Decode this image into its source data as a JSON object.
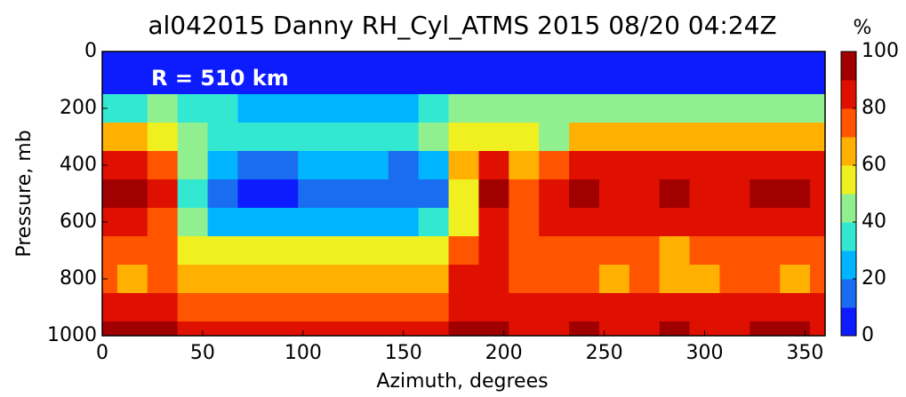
{
  "chart_data": {
    "type": "contour",
    "title": "al042015 Danny RH_Cyl_ATMS  2015 08/20 04:24Z",
    "annotation": "R = 510 km",
    "x_label": "Azimuth, degrees",
    "y_label": "Pressure, mb",
    "colorbar_label": "%",
    "x": [
      0,
      15,
      30,
      45,
      60,
      75,
      90,
      105,
      120,
      135,
      150,
      165,
      180,
      195,
      210,
      225,
      240,
      255,
      270,
      285,
      300,
      315,
      330,
      345,
      360
    ],
    "y": [
      0,
      100,
      200,
      300,
      400,
      500,
      600,
      700,
      800,
      900,
      1000
    ],
    "z": [
      [
        5,
        5,
        5,
        5,
        5,
        5,
        5,
        5,
        5,
        5,
        5,
        5,
        5,
        5,
        5,
        5,
        5,
        5,
        5,
        5,
        5,
        5,
        5,
        5,
        5
      ],
      [
        5,
        5,
        5,
        5,
        5,
        5,
        5,
        5,
        5,
        5,
        5,
        5,
        5,
        5,
        5,
        5,
        5,
        5,
        5,
        5,
        5,
        5,
        5,
        5,
        5
      ],
      [
        35,
        35,
        40,
        35,
        30,
        25,
        25,
        25,
        25,
        25,
        25,
        30,
        40,
        45,
        40,
        40,
        40,
        40,
        40,
        40,
        40,
        40,
        40,
        45,
        40
      ],
      [
        62,
        60,
        55,
        40,
        35,
        35,
        35,
        35,
        35,
        35,
        35,
        40,
        50,
        55,
        50,
        45,
        65,
        65,
        60,
        65,
        65,
        60,
        65,
        65,
        60
      ],
      [
        85,
        85,
        75,
        40,
        22,
        18,
        18,
        20,
        20,
        20,
        18,
        22,
        60,
        80,
        60,
        75,
        85,
        85,
        80,
        85,
        85,
        80,
        85,
        85,
        82
      ],
      [
        90,
        90,
        80,
        35,
        12,
        8,
        8,
        12,
        15,
        15,
        15,
        15,
        50,
        92,
        70,
        85,
        92,
        88,
        85,
        90,
        88,
        85,
        92,
        92,
        88
      ],
      [
        85,
        85,
        75,
        40,
        28,
        28,
        28,
        28,
        28,
        28,
        28,
        35,
        55,
        80,
        75,
        80,
        85,
        85,
        80,
        85,
        85,
        80,
        85,
        85,
        85
      ],
      [
        72,
        75,
        70,
        55,
        50,
        50,
        50,
        50,
        50,
        50,
        50,
        55,
        75,
        80,
        75,
        78,
        78,
        75,
        75,
        65,
        78,
        78,
        75,
        75,
        78
      ],
      [
        75,
        65,
        75,
        68,
        65,
        62,
        62,
        62,
        62,
        62,
        62,
        65,
        85,
        80,
        75,
        75,
        75,
        68,
        75,
        62,
        68,
        70,
        72,
        68,
        72
      ],
      [
        85,
        82,
        85,
        78,
        75,
        72,
        72,
        72,
        75,
        75,
        78,
        75,
        88,
        85,
        85,
        85,
        85,
        82,
        85,
        85,
        85,
        85,
        85,
        85,
        85
      ],
      [
        90,
        92,
        90,
        85,
        82,
        80,
        80,
        80,
        85,
        85,
        88,
        85,
        92,
        90,
        88,
        88,
        90,
        88,
        88,
        90,
        88,
        88,
        90,
        90,
        88
      ]
    ],
    "xlim": [
      0,
      360
    ],
    "xticks": [
      0,
      50,
      100,
      150,
      200,
      250,
      300,
      350
    ],
    "ylim": [
      1000,
      0
    ],
    "yticks": [
      0,
      200,
      400,
      600,
      800,
      1000
    ],
    "levels": [
      0,
      10,
      20,
      30,
      40,
      50,
      60,
      70,
      80,
      90,
      100
    ],
    "colors": [
      "#0d1cff",
      "#1a6cf0",
      "#00b4ff",
      "#33e8d0",
      "#90f090",
      "#f0f020",
      "#ffb000",
      "#ff5500",
      "#e01000",
      "#a00000"
    ],
    "clim": [
      0,
      100
    ],
    "cticks": [
      0,
      20,
      40,
      60,
      80,
      100
    ]
  }
}
